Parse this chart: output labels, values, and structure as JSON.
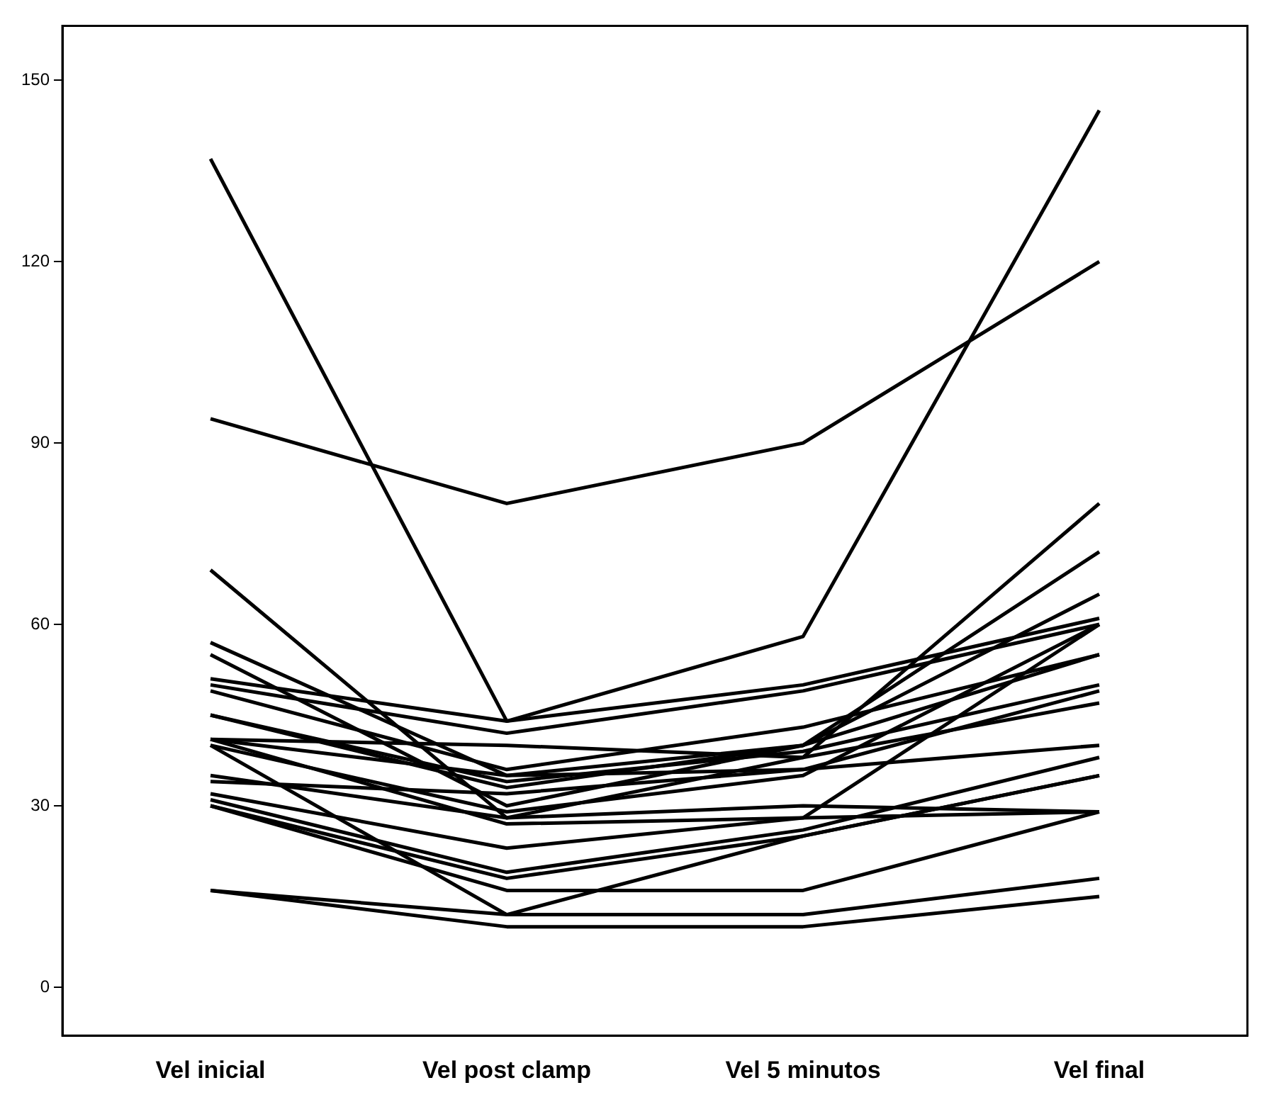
{
  "chart_data": {
    "type": "line",
    "categories": [
      "Vel inicial",
      "Vel post clamp",
      "Vel 5 minutos",
      "Vel final"
    ],
    "ylim": [
      -8,
      159
    ],
    "yticks": [
      0,
      30,
      60,
      90,
      120,
      150
    ],
    "marker": "none",
    "series": [
      {
        "color": "#000000",
        "values": [
          137,
          44,
          58,
          145
        ]
      },
      {
        "color": "#000000",
        "values": [
          94,
          80,
          90,
          120
        ]
      },
      {
        "color": "#000000",
        "values": [
          69,
          28,
          38,
          80
        ]
      },
      {
        "color": "#000000",
        "values": [
          57,
          35,
          40,
          72
        ]
      },
      {
        "color": "#000000",
        "values": [
          55,
          30,
          40,
          65
        ]
      },
      {
        "color": "#000000",
        "values": [
          51,
          44,
          50,
          61
        ]
      },
      {
        "color": "#000000",
        "values": [
          50,
          42,
          49,
          60
        ]
      },
      {
        "color": "#000000",
        "values": [
          49,
          36,
          43,
          55
        ]
      },
      {
        "color": "#000000",
        "values": [
          45,
          34,
          39,
          50
        ]
      },
      {
        "color": "#000000",
        "values": [
          45,
          33,
          40,
          55
        ]
      },
      {
        "color": "#000000",
        "values": [
          41,
          40,
          38,
          47
        ]
      },
      {
        "color": "#000000",
        "values": [
          41,
          35,
          36,
          49
        ]
      },
      {
        "color": "#000000",
        "values": [
          40,
          29,
          35,
          60
        ]
      },
      {
        "color": "#000000",
        "values": [
          40,
          12,
          25,
          35
        ]
      },
      {
        "color": "#000000",
        "values": [
          41,
          27,
          28,
          29
        ]
      },
      {
        "color": "#000000",
        "values": [
          35,
          28,
          30,
          29
        ]
      },
      {
        "color": "#000000",
        "values": [
          34,
          32,
          36,
          40
        ]
      },
      {
        "color": "#000000",
        "values": [
          32,
          23,
          28,
          60
        ]
      },
      {
        "color": "#000000",
        "values": [
          31,
          19,
          26,
          38
        ]
      },
      {
        "color": "#000000",
        "values": [
          30,
          18,
          25,
          35
        ]
      },
      {
        "color": "#000000",
        "values": [
          30,
          16,
          16,
          29
        ]
      },
      {
        "color": "#000000",
        "values": [
          16,
          12,
          12,
          18
        ]
      },
      {
        "color": "#000000",
        "values": [
          16,
          10,
          10,
          15
        ]
      }
    ]
  }
}
